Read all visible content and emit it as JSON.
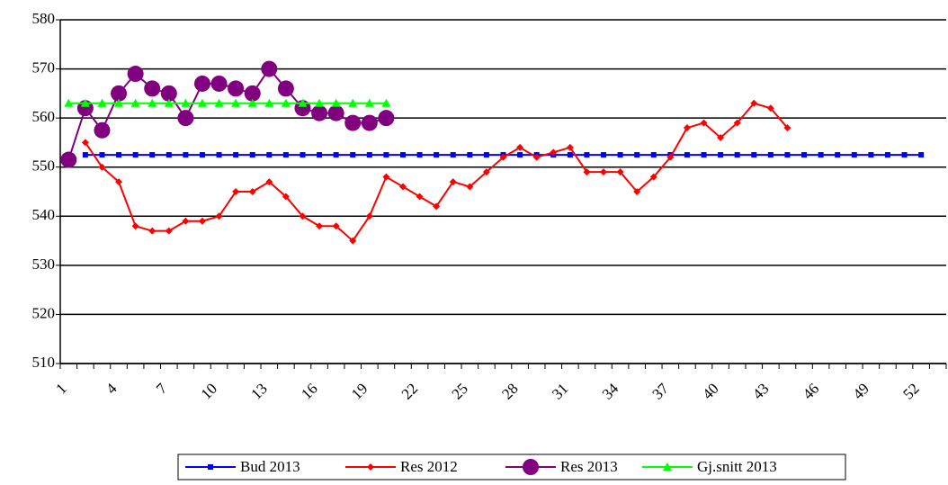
{
  "chart_data": {
    "type": "line",
    "categories": [
      "1",
      null,
      null,
      "4",
      null,
      null,
      "7",
      null,
      null,
      "10",
      null,
      null,
      "13",
      null,
      null,
      "16",
      null,
      null,
      "19",
      null,
      null,
      "22",
      null,
      null,
      "25",
      null,
      null,
      "28",
      null,
      null,
      "31",
      null,
      null,
      "34",
      null,
      null,
      "37",
      null,
      null,
      "40",
      null,
      null,
      "43",
      null,
      null,
      "46",
      null,
      null,
      "49",
      null,
      null,
      "52",
      null
    ],
    "ylim": [
      510,
      580
    ],
    "yticks": [
      510,
      520,
      530,
      540,
      550,
      560,
      570,
      580
    ],
    "grid": true,
    "series": [
      {
        "name": "Bud 2013",
        "color": "#0000ff",
        "marker": "square",
        "values": [
          null,
          552.5,
          552.5,
          552.5,
          552.5,
          552.5,
          552.5,
          552.5,
          552.5,
          552.5,
          552.5,
          552.5,
          552.5,
          552.5,
          552.5,
          552.5,
          552.5,
          552.5,
          552.5,
          552.5,
          552.5,
          552.5,
          552.5,
          552.5,
          552.5,
          552.5,
          552.5,
          552.5,
          552.5,
          552.5,
          552.5,
          552.5,
          552.5,
          552.5,
          552.5,
          552.5,
          552.5,
          552.5,
          552.5,
          552.5,
          552.5,
          552.5,
          552.5,
          552.5,
          552.5,
          552.5,
          552.5,
          552.5,
          552.5,
          552.5,
          552.5,
          552.5,
          null
        ]
      },
      {
        "name": "Res 2012",
        "color": "#ff0000",
        "marker": "diamond",
        "values": [
          null,
          555,
          550,
          547,
          538,
          537,
          537,
          539,
          539,
          540,
          545,
          545,
          547,
          544,
          540,
          538,
          538,
          535,
          540,
          548,
          546,
          544,
          542,
          547,
          546,
          549,
          552,
          554,
          552,
          553,
          554,
          549,
          549,
          549,
          545,
          548,
          552,
          558,
          559,
          556,
          559,
          563,
          562,
          558,
          null,
          null,
          null,
          null,
          null,
          null,
          null,
          null,
          null
        ]
      },
      {
        "name": "Res 2013",
        "color": "#800080",
        "marker": "circle",
        "values": [
          551.5,
          562,
          557.5,
          565,
          569,
          566,
          565,
          560,
          567,
          567,
          566,
          565,
          570,
          566,
          562,
          561,
          561,
          559,
          559,
          560,
          null,
          null,
          null,
          null,
          null,
          null,
          null,
          null,
          null,
          null,
          null,
          null,
          null,
          null,
          null,
          null,
          null,
          null,
          null,
          null,
          null,
          null,
          null,
          null,
          null,
          null,
          null,
          null,
          null,
          null,
          null,
          null,
          null
        ]
      },
      {
        "name": "Gj.snitt 2013",
        "color": "#00ff00",
        "marker": "triangle",
        "values": [
          563,
          563,
          563,
          563,
          563,
          563,
          563,
          563,
          563,
          563,
          563,
          563,
          563,
          563,
          563,
          563,
          563,
          563,
          563,
          563,
          null,
          null,
          null,
          null,
          null,
          null,
          null,
          null,
          null,
          null,
          null,
          null,
          null,
          null,
          null,
          null,
          null,
          null,
          null,
          null,
          null,
          null,
          null,
          null,
          null,
          null,
          null,
          null,
          null,
          null,
          null,
          null,
          null
        ]
      }
    ]
  }
}
